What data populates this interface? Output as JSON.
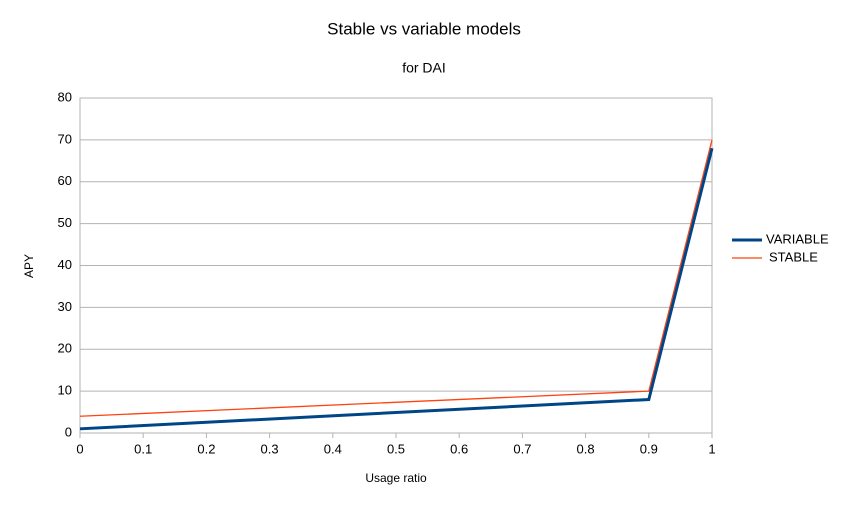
{
  "chart_data": {
    "type": "line",
    "title": "Stable vs variable models",
    "subtitle": "for DAI",
    "x_label": "Usage ratio",
    "y_label": "APY",
    "x": [
      0,
      0.9,
      1
    ],
    "series": [
      {
        "name": "VARIABLE",
        "color": "#004586",
        "values": [
          1,
          8,
          68
        ]
      },
      {
        "name": "STABLE",
        "color": "#ff420e",
        "values": [
          4,
          10,
          70
        ]
      }
    ],
    "xlim": [
      0,
      1
    ],
    "xticks": [
      0,
      0.1,
      0.2,
      0.3,
      0.4,
      0.5,
      0.6,
      0.7,
      0.8,
      0.9,
      1
    ],
    "ylim": [
      0,
      80
    ],
    "yticks": [
      0,
      10,
      20,
      30,
      40,
      50,
      60,
      70,
      80
    ],
    "grid": true,
    "legend": "right"
  }
}
